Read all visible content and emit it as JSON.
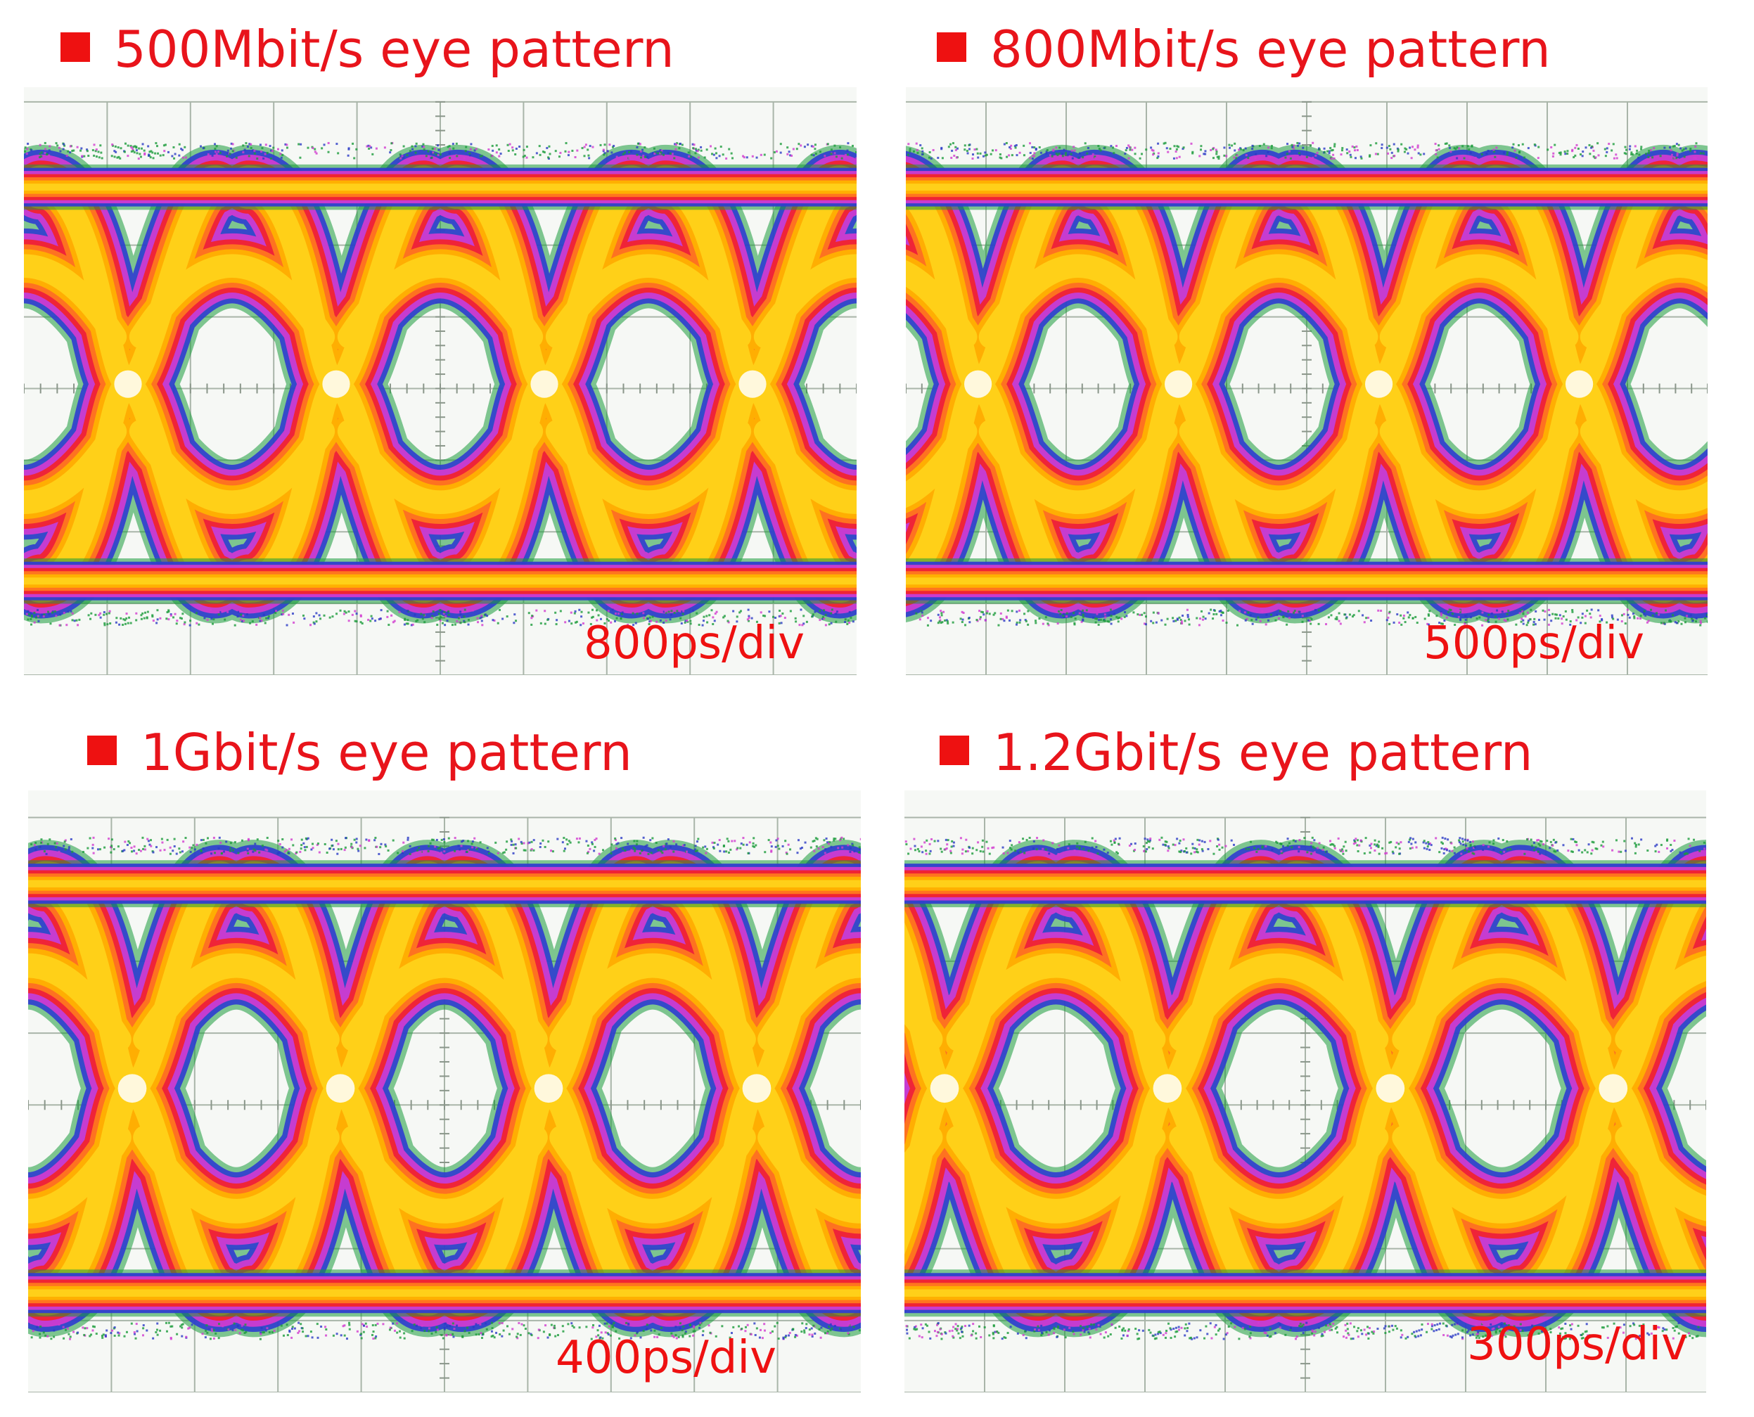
{
  "colors": {
    "accent": "#ee1111",
    "grid": "#a9b5a9",
    "scope_bg": "#f6f8f5",
    "heat": [
      "#1a9a3a",
      "#2f3fcf",
      "#d23bd0",
      "#f2232a",
      "#ff7a1e",
      "#ffb300",
      "#ffd21a"
    ]
  },
  "chart_data": [
    {
      "type": "eye-diagram",
      "title": "500Mbit/s eye pattern",
      "bit_rate": "500Mbit/s",
      "time_scale": "800ps/div",
      "ui_in_divisions": 2.5,
      "grid": true,
      "eye_openings_visible": 4,
      "crossings_visible": 4
    },
    {
      "type": "eye-diagram",
      "title": "800Mbit/s eye pattern",
      "bit_rate": "800Mbit/s",
      "time_scale": "500ps/div",
      "ui_in_divisions": 2.5,
      "grid": true,
      "eye_openings_visible": 4,
      "crossings_visible": 4
    },
    {
      "type": "eye-diagram",
      "title": "1Gbit/s eye pattern",
      "bit_rate": "1Gbit/s",
      "time_scale": "400ps/div",
      "ui_in_divisions": 2.5,
      "grid": true,
      "eye_openings_visible": 4,
      "crossings_visible": 4
    },
    {
      "type": "eye-diagram",
      "title": "1.2Gbit/s eye pattern",
      "bit_rate": "1.2Gbit/s",
      "time_scale": "300ps/div",
      "ui_in_divisions": 2.78,
      "grid": true,
      "eye_openings_visible": 4,
      "crossings_visible": 4
    }
  ]
}
